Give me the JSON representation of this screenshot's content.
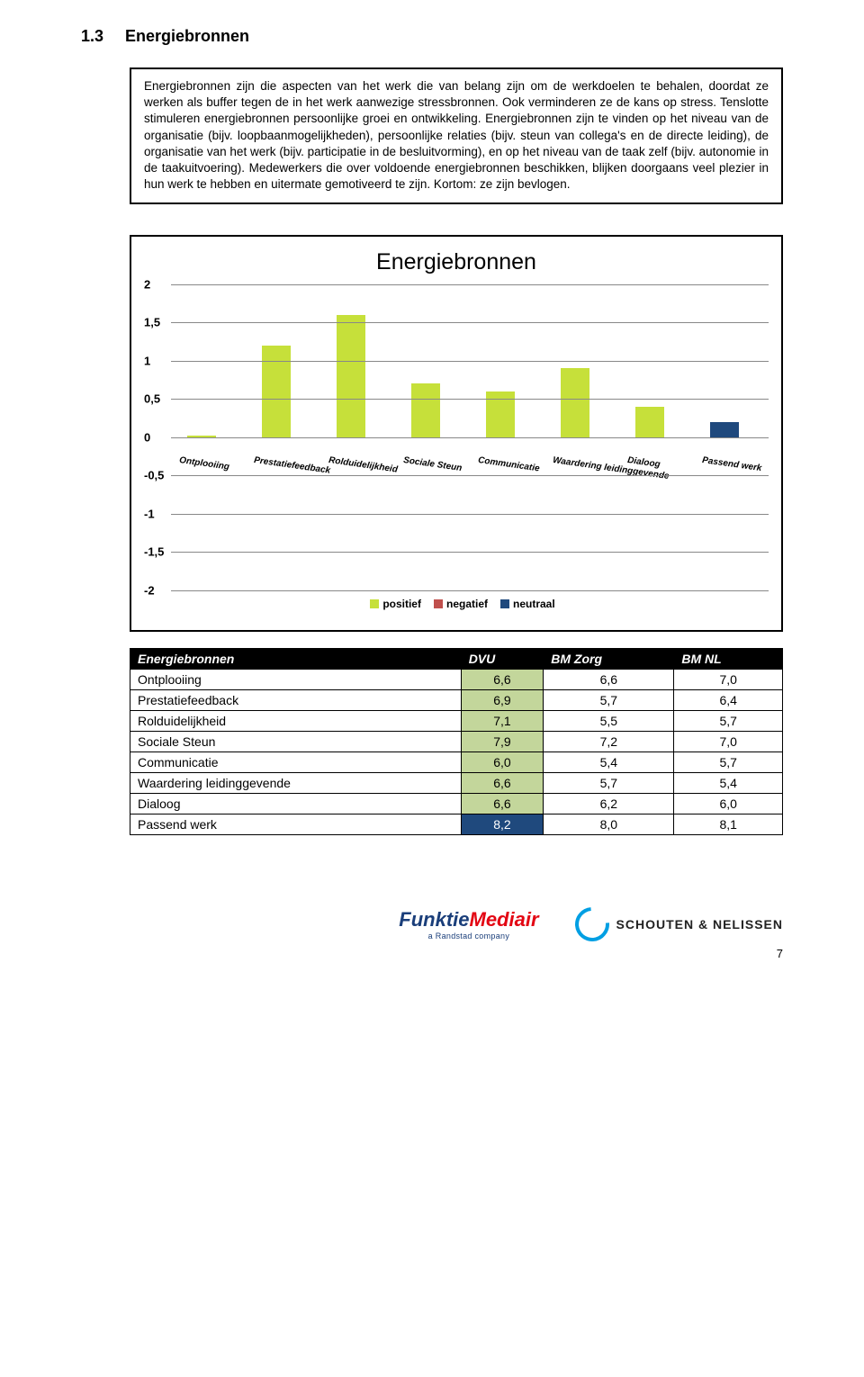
{
  "section": {
    "number": "1.3",
    "title": "Energiebronnen"
  },
  "intro": "Energiebronnen zijn die aspecten van het werk die van belang zijn om de werkdoelen te behalen, doordat ze werken als buffer tegen de in het werk aanwezige stressbronnen. Ook verminderen ze de kans op stress. Tenslotte stimuleren energiebronnen persoonlijke groei en ontwikkeling. Energiebronnen zijn te vinden op het niveau van de organisatie (bijv. loopbaanmogelijkheden), persoonlijke relaties (bijv. steun van collega's en de directe leiding), de organisatie van het werk (bijv. participatie in de besluitvorming), en op het niveau van de taak zelf (bijv. autonomie in de taakuitvoering). Medewerkers die over voldoende energiebronnen beschikken, blijken doorgaans veel plezier in hun werk te hebben en uitermate gemotiveerd te zijn. Kortom: ze zijn bevlogen.",
  "chart": {
    "title": "Energiebronnen",
    "ylim": [
      -2,
      2
    ],
    "yticks": [
      -2,
      -1.5,
      -1,
      -0.5,
      0,
      0.5,
      1,
      1.5,
      2
    ],
    "ytick_labels": [
      "-2",
      "-1,5",
      "-1",
      "-0,5",
      "0",
      "0,5",
      "1",
      "1,5",
      "2"
    ],
    "categories": [
      "Ontplooiing",
      "Prestatiefeedback",
      "Rolduidelijkheid",
      "Sociale Steun",
      "Communicatie",
      "Waardering leidinggevende",
      "Dialoog",
      "Passend werk"
    ],
    "values": [
      0.0,
      1.2,
      1.6,
      0.7,
      0.6,
      0.9,
      0.4,
      0.2
    ],
    "bar_types": [
      "pos",
      "pos",
      "pos",
      "pos",
      "pos",
      "pos",
      "pos",
      "neu"
    ],
    "colors": {
      "pos": "#c6e03a",
      "neg": "#c0504d",
      "neu": "#1f497d"
    },
    "grid_color": "#888888",
    "legend": [
      {
        "label": "positief",
        "color": "#c6e03a"
      },
      {
        "label": "negatief",
        "color": "#c0504d"
      },
      {
        "label": "neutraal",
        "color": "#1f497d"
      }
    ]
  },
  "table": {
    "headers": [
      "Energiebronnen",
      "DVU",
      "BM Zorg",
      "BM NL"
    ],
    "rows": [
      {
        "label": "Ontplooiing",
        "dvu": "6,6",
        "bmz": "6,6",
        "bmnl": "7,0",
        "type": "pos"
      },
      {
        "label": "Prestatiefeedback",
        "dvu": "6,9",
        "bmz": "5,7",
        "bmnl": "6,4",
        "type": "pos"
      },
      {
        "label": "Rolduidelijkheid",
        "dvu": "7,1",
        "bmz": "5,5",
        "bmnl": "5,7",
        "type": "pos"
      },
      {
        "label": "Sociale Steun",
        "dvu": "7,9",
        "bmz": "7,2",
        "bmnl": "7,0",
        "type": "pos"
      },
      {
        "label": "Communicatie",
        "dvu": "6,0",
        "bmz": "5,4",
        "bmnl": "5,7",
        "type": "pos"
      },
      {
        "label": "Waardering leidinggevende",
        "dvu": "6,6",
        "bmz": "5,7",
        "bmnl": "5,4",
        "type": "pos"
      },
      {
        "label": "Dialoog",
        "dvu": "6,6",
        "bmz": "6,2",
        "bmnl": "6,0",
        "type": "pos"
      },
      {
        "label": "Passend werk",
        "dvu": "8,2",
        "bmz": "8,0",
        "bmnl": "8,1",
        "type": "neu"
      }
    ]
  },
  "footer": {
    "fm_name1a": "Funktie",
    "fm_name1b": "Mediair",
    "fm_tag": "a Randstad company",
    "sn_name": "SCHOUTEN & NELISSEN",
    "page": "7"
  }
}
